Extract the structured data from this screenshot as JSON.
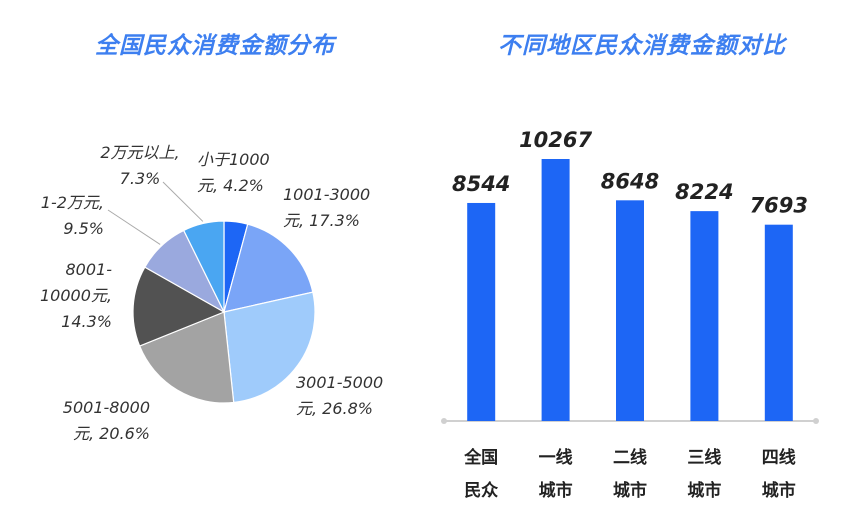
{
  "chart_data": [
    {
      "type": "pie",
      "title": "全国民众消费金额分布",
      "slices": [
        {
          "label": "小于1000元",
          "value": 4.2,
          "text": [
            "小于1000",
            "元, 4.2%"
          ],
          "color": "#1d66f5"
        },
        {
          "label": "1001-3000元",
          "value": 17.3,
          "text": [
            "1001-3000",
            "元, 17.3%"
          ],
          "color": "#7aa5f7"
        },
        {
          "label": "3001-5000元",
          "value": 26.8,
          "text": [
            "3001-5000",
            "元, 26.8%"
          ],
          "color": "#9fcbfb"
        },
        {
          "label": "5001-8000元",
          "value": 20.6,
          "text": [
            "5001-8000",
            "元, 20.6%"
          ],
          "color": "#a3a3a3"
        },
        {
          "label": "8001-10000元",
          "value": 14.3,
          "text": [
            "8001-",
            "10000元,",
            "14.3%"
          ],
          "color": "#525252"
        },
        {
          "label": "1-2万元",
          "value": 9.5,
          "text": [
            "1-2万元,",
            "9.5%"
          ],
          "color": "#9aa9de"
        },
        {
          "label": "2万元以上",
          "value": 7.3,
          "text": [
            "2万元以上,",
            "7.3%"
          ],
          "color": "#4aa6f2"
        }
      ]
    },
    {
      "type": "bar",
      "title": "不同地区民众消费金额对比",
      "categories": [
        [
          "全国",
          "民众"
        ],
        [
          "一线",
          "城市"
        ],
        [
          "二线",
          "城市"
        ],
        [
          "三线",
          "城市"
        ],
        [
          "四线",
          "城市"
        ]
      ],
      "values": [
        8544,
        10267,
        8648,
        8224,
        7693
      ],
      "color": "#1d66f5"
    }
  ]
}
